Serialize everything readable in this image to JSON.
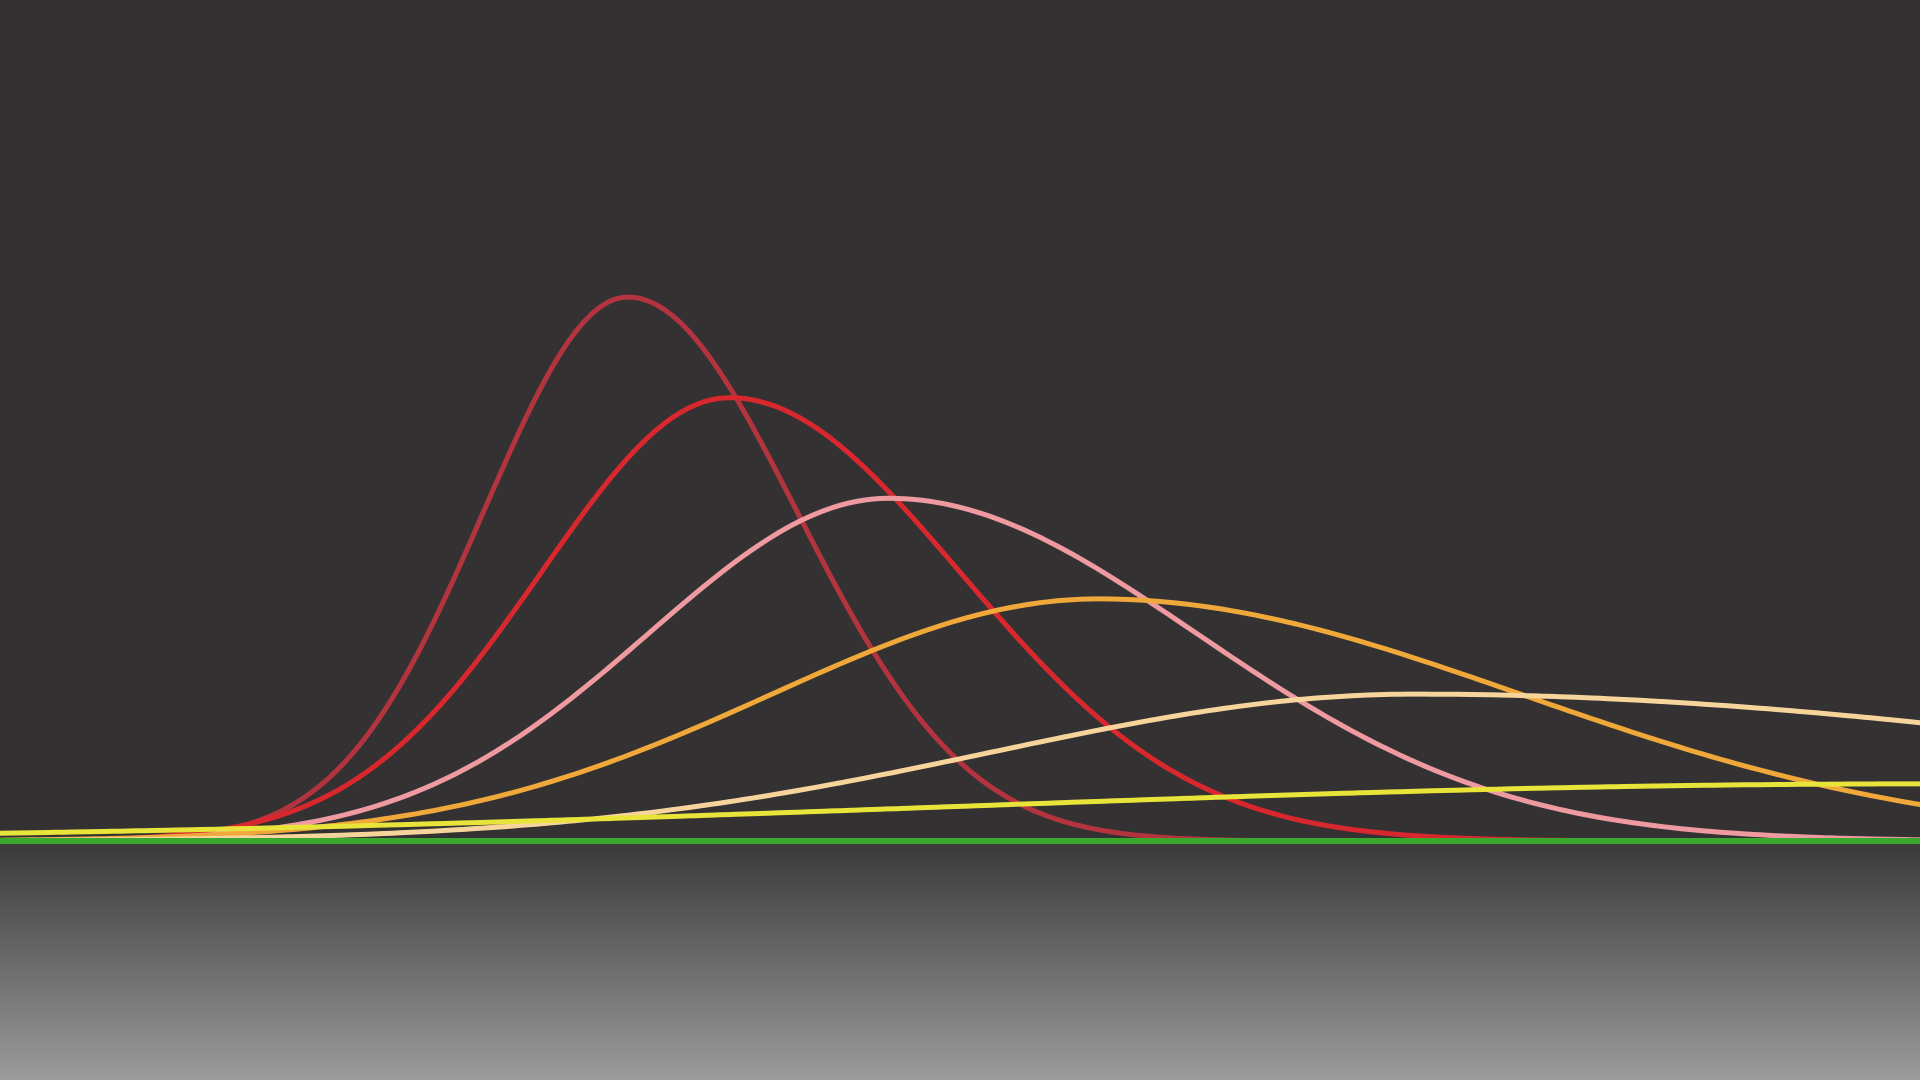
{
  "chart_data": {
    "type": "line",
    "title": "",
    "xlabel": "",
    "ylabel": "",
    "grid": false,
    "legend": "none",
    "background": "#333132",
    "floor_gradient": [
      "#3a3939",
      "#9b9b9b"
    ],
    "xlim": [
      0,
      100
    ],
    "ylim": [
      0,
      100
    ],
    "series": [
      {
        "color": "#b3333f",
        "peak_x": 32.7,
        "amplitude": 100,
        "sigma_left": 7.5,
        "sigma_right": 8.8
      },
      {
        "color": "#d8282d",
        "peak_x": 38.0,
        "amplitude": 81.5,
        "sigma_left": 9.8,
        "sigma_right": 12.0
      },
      {
        "color": "#ee9aa0",
        "peak_x": 46.3,
        "amplitude": 63.0,
        "sigma_left": 12.5,
        "sigma_right": 16.0
      },
      {
        "color": "#f0a83a",
        "peak_x": 57.2,
        "amplitude": 44.5,
        "sigma_left": 17.0,
        "sigma_right": 22.0
      },
      {
        "color": "#f7d49b",
        "peak_x": 73.7,
        "amplitude": 27.0,
        "sigma_left": 22.0,
        "sigma_right": 40.0
      },
      {
        "color": "#e8e43a",
        "peak_x": 100,
        "amplitude": 10.5,
        "sigma_left": 50.0,
        "sigma_right": 50.0
      },
      {
        "color": "#3aa82e",
        "peak_x": 50,
        "amplitude": 0,
        "sigma_left": 50.0,
        "sigma_right": 50.0
      }
    ]
  }
}
